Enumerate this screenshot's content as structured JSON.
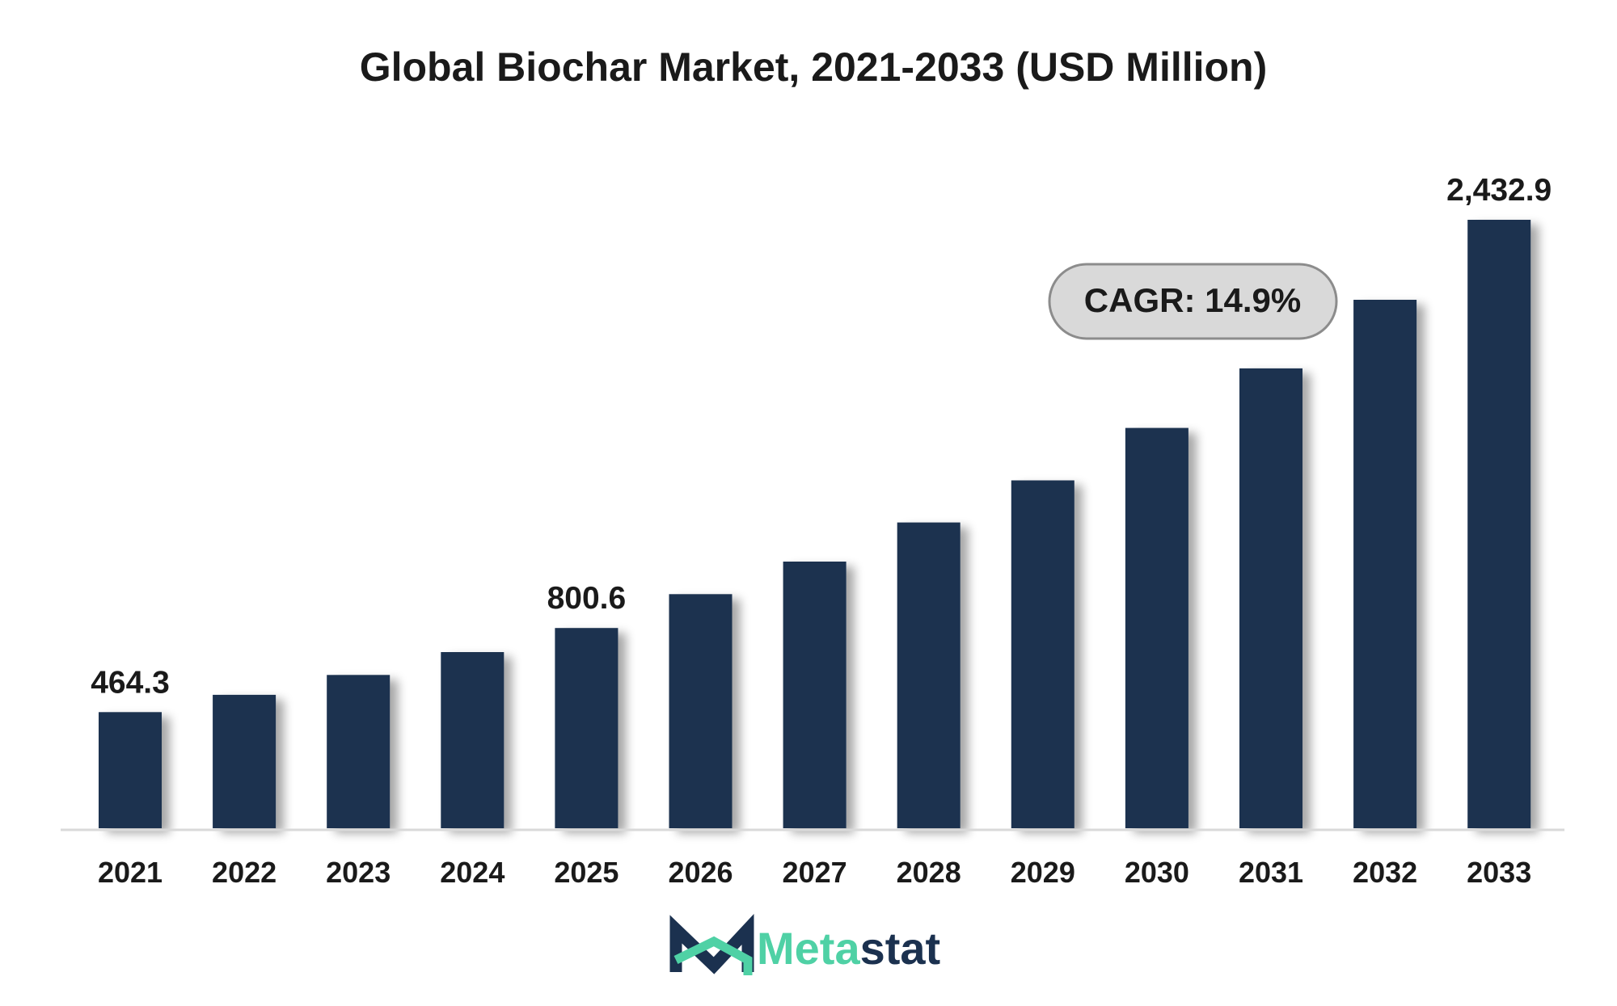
{
  "chart_data": {
    "type": "bar",
    "title": "Global Biochar Market, 2021-2033 (USD Million)",
    "xlabel": "",
    "ylabel": "",
    "categories": [
      "2021",
      "2022",
      "2023",
      "2024",
      "2025",
      "2026",
      "2027",
      "2028",
      "2029",
      "2030",
      "2031",
      "2032",
      "2033"
    ],
    "values": [
      464.3,
      533.5,
      613.0,
      704.3,
      800.6,
      936.1,
      1066.1,
      1222.6,
      1391.0,
      1600.7,
      1838.8,
      2113.0,
      2432.9
    ],
    "data_labels": [
      {
        "category": "2021",
        "text": "464.3"
      },
      {
        "category": "2025",
        "text": "800.6"
      },
      {
        "category": "2033",
        "text": "2,432.9"
      }
    ],
    "annotation": "CAGR: 14.9%",
    "grid": false,
    "legend": "none",
    "colors": {
      "bar": "#1b314f",
      "baseline": "#d9d9d9",
      "annotation_fill": "#d9d9d9",
      "annotation_border": "#8c8c8c",
      "text": "#1a1a1a"
    }
  },
  "logo": {
    "text_part1": "Meta",
    "text_part2": "stat",
    "color1": "#4fd1a5",
    "color2": "#1b314f"
  }
}
